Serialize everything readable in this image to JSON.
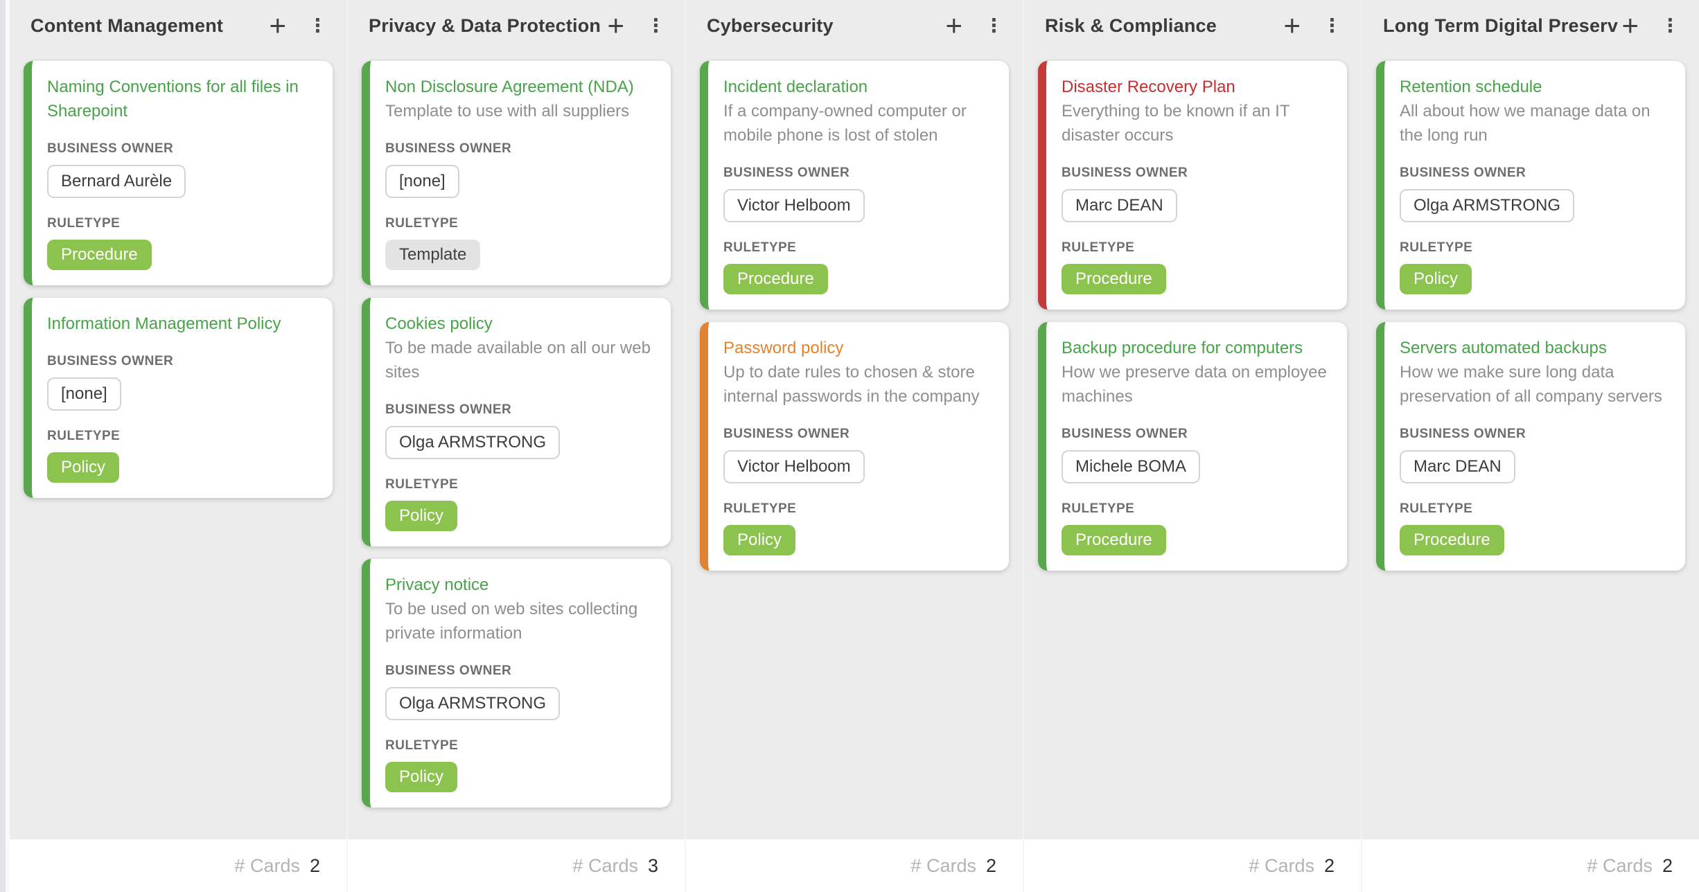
{
  "labels": {
    "business_owner": "BUSINESS OWNER",
    "ruletype": "RULETYPE",
    "cards_count": "# Cards"
  },
  "icons": {
    "add": "+",
    "menu": "⋮"
  },
  "colors": {
    "accents": {
      "green": {
        "bar": "#58A74C",
        "title": "#47A347"
      },
      "orange": {
        "bar": "#E08433",
        "title": "#E2832D"
      },
      "red": {
        "bar": "#C43B3B",
        "title": "#C92E2E"
      }
    },
    "badges": {
      "green": {
        "bg": "#8CC24E",
        "text": "#FFFFFF"
      },
      "gray": {
        "bg": "#E3E3E3",
        "text": "#3F3F3F"
      }
    },
    "column_bg": "#ECECEC",
    "footer_bg": "#FFFFFF"
  },
  "board": {
    "columns": [
      {
        "title": "Content Management",
        "count": "2",
        "cards": [
          {
            "title": "Naming Conventions for all files in Sharepoint",
            "description": "",
            "owner": "Bernard Aurèle",
            "ruletype": "Procedure",
            "accent": "green",
            "badge_style": "green"
          },
          {
            "title": "Information Management Policy",
            "description": "",
            "owner": "[none]",
            "ruletype": "Policy",
            "accent": "green",
            "badge_style": "green"
          }
        ]
      },
      {
        "title": "Privacy & Data Protection",
        "count": "3",
        "cards": [
          {
            "title": "Non Disclosure Agreement (NDA)",
            "description": "Template to use with all suppliers",
            "owner": "[none]",
            "ruletype": "Template",
            "accent": "green",
            "badge_style": "gray"
          },
          {
            "title": "Cookies policy",
            "description": "To be made available on all our web sites",
            "owner": "Olga ARMSTRONG",
            "ruletype": "Policy",
            "accent": "green",
            "badge_style": "green"
          },
          {
            "title": "Privacy notice",
            "description": "To be used on web sites collecting private information",
            "owner": "Olga ARMSTRONG",
            "ruletype": "Policy",
            "accent": "green",
            "badge_style": "green"
          }
        ]
      },
      {
        "title": "Cybersecurity",
        "count": "2",
        "cards": [
          {
            "title": "Incident declaration",
            "description": "If a company-owned computer or mobile phone is lost of stolen",
            "owner": "Victor Helboom",
            "ruletype": "Procedure",
            "accent": "green",
            "badge_style": "green"
          },
          {
            "title": "Password policy",
            "description": "Up to date rules to chosen & store internal passwords in the company",
            "owner": "Victor Helboom",
            "ruletype": "Policy",
            "accent": "orange",
            "badge_style": "green"
          }
        ]
      },
      {
        "title": "Risk & Compliance",
        "count": "2",
        "cards": [
          {
            "title": "Disaster Recovery Plan",
            "description": "Everything to be known if an IT disaster occurs",
            "owner": "Marc DEAN",
            "ruletype": "Procedure",
            "accent": "red",
            "badge_style": "green"
          },
          {
            "title": "Backup procedure for computers",
            "description": "How we preserve data on employee machines",
            "owner": "Michele BOMA",
            "ruletype": "Procedure",
            "accent": "green",
            "badge_style": "green"
          }
        ]
      },
      {
        "title": "Long Term Digital Preserv",
        "count": "2",
        "cards": [
          {
            "title": "Retention schedule",
            "description": "All about how we manage data on the long run",
            "owner": "Olga ARMSTRONG",
            "ruletype": "Policy",
            "accent": "green",
            "badge_style": "green"
          },
          {
            "title": "Servers automated backups",
            "description": "How we make sure long data preservation of all company servers",
            "owner": "Marc DEAN",
            "ruletype": "Procedure",
            "accent": "green",
            "badge_style": "green"
          }
        ]
      }
    ]
  }
}
